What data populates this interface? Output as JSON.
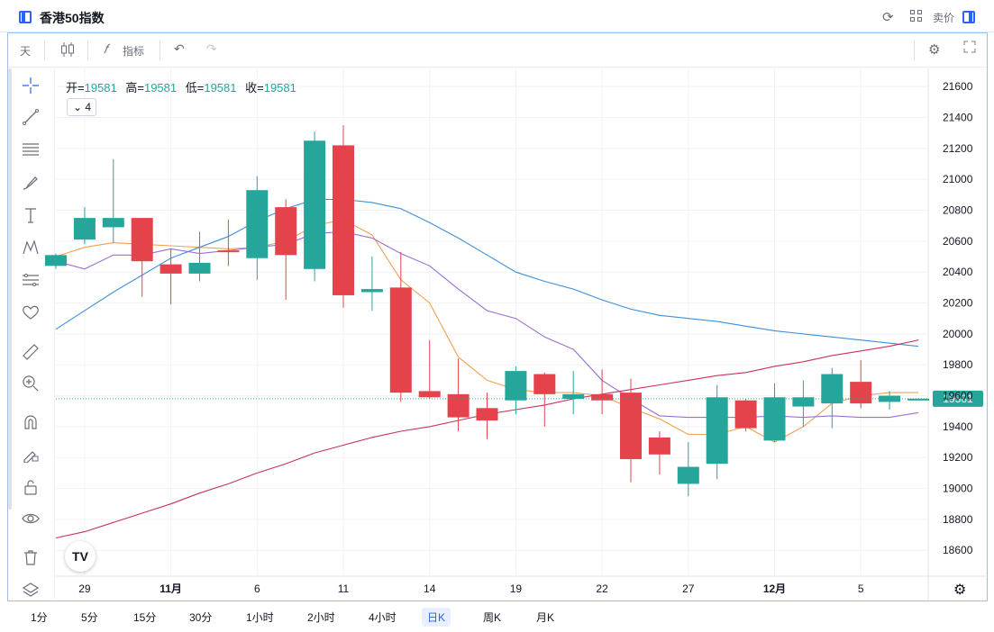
{
  "titlebar": {
    "title": "香港50指数",
    "sell_label": "卖价"
  },
  "toolbar": {
    "interval": "天",
    "indicators_label": "指标",
    "fx_symbol": "𝑓"
  },
  "legend": {
    "open_label": "开=",
    "open": "19581",
    "high_label": "高=",
    "high": "19581",
    "low_label": "低=",
    "low": "19581",
    "close_label": "收=",
    "close": "19581",
    "indicator_count": "4"
  },
  "timeframes": [
    "1分",
    "5分",
    "15分",
    "30分",
    "1小时",
    "2小时",
    "4小时",
    "日K",
    "周K",
    "月K"
  ],
  "active_timeframe": "日K",
  "logo_text": "TV",
  "colors": {
    "up": "#26a69a",
    "down": "#e5434c",
    "ma_orange": "#f0a050",
    "ma_purple": "#9b6ed4",
    "ma_blue": "#3d8fd9",
    "ma_crimson": "#c9325a",
    "accent": "#2962ff"
  },
  "chart_data": {
    "type": "candlestick",
    "ylim": [
      18450,
      21700
    ],
    "yticks": [
      18600,
      18800,
      19000,
      19200,
      19400,
      19600,
      19800,
      20000,
      20200,
      20400,
      20600,
      20800,
      21000,
      21200,
      21400,
      21600
    ],
    "last_price": 19581,
    "xtick_labels": [
      {
        "i": 1,
        "label": "29"
      },
      {
        "i": 4,
        "label": "11月"
      },
      {
        "i": 7,
        "label": "6"
      },
      {
        "i": 10,
        "label": "11"
      },
      {
        "i": 13,
        "label": "14"
      },
      {
        "i": 16,
        "label": "19"
      },
      {
        "i": 19,
        "label": "22"
      },
      {
        "i": 22,
        "label": "27"
      },
      {
        "i": 25,
        "label": "12月"
      },
      {
        "i": 28,
        "label": "5"
      }
    ],
    "candles": [
      {
        "o": 20440,
        "h": 20520,
        "l": 20420,
        "c": 20510
      },
      {
        "o": 20610,
        "h": 20820,
        "l": 20580,
        "c": 20750
      },
      {
        "o": 20690,
        "h": 21130,
        "l": 20590,
        "c": 20750
      },
      {
        "o": 20750,
        "h": 20750,
        "l": 20240,
        "c": 20470
      },
      {
        "o": 20450,
        "h": 20550,
        "l": 20190,
        "c": 20390
      },
      {
        "o": 20390,
        "h": 20660,
        "l": 20340,
        "c": 20460
      },
      {
        "o": 20540,
        "h": 20740,
        "l": 20440,
        "c": 20530
      },
      {
        "o": 20490,
        "h": 21020,
        "l": 20350,
        "c": 20930
      },
      {
        "o": 20820,
        "h": 20870,
        "l": 20220,
        "c": 20510
      },
      {
        "o": 20420,
        "h": 21310,
        "l": 20340,
        "c": 21250
      },
      {
        "o": 21220,
        "h": 21350,
        "l": 20170,
        "c": 20250
      },
      {
        "o": 20270,
        "h": 20500,
        "l": 20150,
        "c": 20290
      },
      {
        "o": 20300,
        "h": 20530,
        "l": 19560,
        "c": 19620
      },
      {
        "o": 19630,
        "h": 19960,
        "l": 19580,
        "c": 19590
      },
      {
        "o": 19610,
        "h": 19840,
        "l": 19370,
        "c": 19460
      },
      {
        "o": 19520,
        "h": 19620,
        "l": 19320,
        "c": 19440
      },
      {
        "o": 19570,
        "h": 19790,
        "l": 19480,
        "c": 19760
      },
      {
        "o": 19740,
        "h": 19750,
        "l": 19400,
        "c": 19610
      },
      {
        "o": 19580,
        "h": 19760,
        "l": 19480,
        "c": 19610
      },
      {
        "o": 19610,
        "h": 19770,
        "l": 19480,
        "c": 19570
      },
      {
        "o": 19620,
        "h": 19710,
        "l": 19040,
        "c": 19190
      },
      {
        "o": 19330,
        "h": 19370,
        "l": 19090,
        "c": 19220
      },
      {
        "o": 19030,
        "h": 19300,
        "l": 18950,
        "c": 19140
      },
      {
        "o": 19160,
        "h": 19670,
        "l": 19060,
        "c": 19590
      },
      {
        "o": 19570,
        "h": 19580,
        "l": 19370,
        "c": 19390
      },
      {
        "o": 19310,
        "h": 19680,
        "l": 19300,
        "c": 19590
      },
      {
        "o": 19530,
        "h": 19700,
        "l": 19400,
        "c": 19590
      },
      {
        "o": 19550,
        "h": 19780,
        "l": 19390,
        "c": 19740
      },
      {
        "o": 19690,
        "h": 19830,
        "l": 19520,
        "c": 19550
      },
      {
        "o": 19560,
        "h": 19630,
        "l": 19510,
        "c": 19600
      },
      {
        "o": 19581,
        "h": 19581,
        "l": 19581,
        "c": 19581
      }
    ],
    "series": [
      {
        "color": "#f0a050",
        "values": [
          20500,
          20560,
          20590,
          20580,
          20570,
          20560,
          20550,
          20560,
          20600,
          20700,
          20740,
          20640,
          20350,
          20200,
          19850,
          19700,
          19640,
          19620,
          19620,
          19600,
          19520,
          19450,
          19350,
          19350,
          19400,
          19300,
          19400,
          19550,
          19600,
          19620,
          19620
        ]
      },
      {
        "color": "#9b6ed4",
        "values": [
          20470,
          20420,
          20510,
          20510,
          20550,
          20520,
          20540,
          20560,
          20580,
          20650,
          20660,
          20620,
          20520,
          20440,
          20290,
          20150,
          20100,
          19980,
          19900,
          19700,
          19580,
          19470,
          19460,
          19460,
          19460,
          19470,
          19460,
          19470,
          19460,
          19460,
          19490
        ]
      },
      {
        "color": "#3d8fd9",
        "values": [
          20030,
          20150,
          20270,
          20380,
          20490,
          20560,
          20630,
          20730,
          20810,
          20870,
          20870,
          20850,
          20810,
          20720,
          20620,
          20510,
          20400,
          20340,
          20290,
          20220,
          20160,
          20120,
          20100,
          20080,
          20050,
          20020,
          20000,
          19980,
          19960,
          19940,
          19920
        ]
      },
      {
        "color": "#c9325a",
        "values": [
          18680,
          18720,
          18780,
          18840,
          18900,
          18970,
          19030,
          19100,
          19160,
          19230,
          19280,
          19330,
          19370,
          19400,
          19440,
          19480,
          19510,
          19540,
          19580,
          19610,
          19640,
          19670,
          19700,
          19730,
          19750,
          19790,
          19820,
          19860,
          19890,
          19920,
          19960
        ]
      }
    ]
  }
}
